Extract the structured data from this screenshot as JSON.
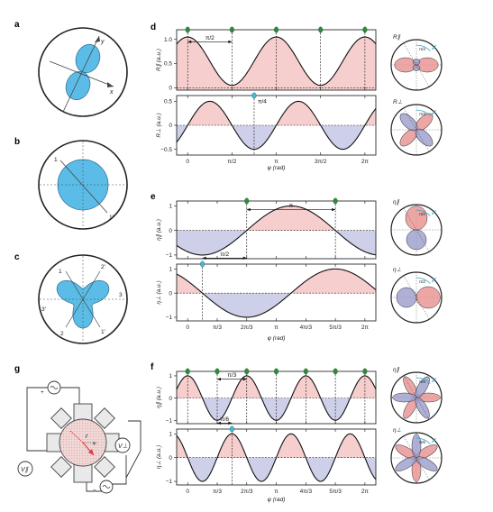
{
  "panels": {
    "a": {
      "label": "a",
      "axes": [
        "y",
        "x"
      ]
    },
    "b": {
      "label": "b",
      "axes": [
        "1",
        "1′"
      ]
    },
    "c": {
      "label": "c",
      "axes": [
        "1",
        "2′",
        "3",
        "3′",
        "2",
        "1′"
      ]
    },
    "g": {
      "label": "g",
      "plus": "+",
      "minus": "−",
      "r": "r",
      "phi": "φ",
      "v_perp": "V⊥",
      "v_par": "V∥"
    }
  },
  "chart_data": [
    {
      "id": "d",
      "label": "d",
      "type": "line",
      "xlabel": "φ (rad)",
      "x_range": [
        -0.39,
        6.67
      ],
      "xticks": [
        {
          "v": 0,
          "t": "0"
        },
        {
          "v": 1.5708,
          "t": "π/2"
        },
        {
          "v": 3.1416,
          "t": "π"
        },
        {
          "v": 4.7124,
          "t": "3π/2"
        },
        {
          "v": 6.2832,
          "t": "2π"
        }
      ],
      "subplots": [
        {
          "ylabel": "R∥ (a.u.)",
          "ylim": [
            -0.05,
            1.2
          ],
          "yticks": [
            0,
            0.5,
            1.0
          ],
          "ytick_labels": [
            "0",
            "0.5",
            "1.0"
          ],
          "curve": "0.55 + 0.5*cos(2x)",
          "fill": "positive",
          "markers": [
            0,
            1.5708,
            3.1416,
            4.7124,
            6.2832
          ],
          "marker_color": "green",
          "annotation": {
            "text": "π/2",
            "x1": 0,
            "x2": 1.5708,
            "y": 0.95
          }
        },
        {
          "ylabel": "R⊥ (a.u.)",
          "ylim": [
            -0.62,
            0.62
          ],
          "yticks": [
            -0.5,
            0,
            0.5
          ],
          "ytick_labels": [
            "−0.5",
            "0",
            "0.5"
          ],
          "curve": "0.5*sin(2x)",
          "fill": "both",
          "markers": [
            2.356
          ],
          "marker_color": "blue",
          "annotation": {
            "text": "π/4",
            "x1": 2.356,
            "x2": 2.356,
            "y": 0.5
          }
        }
      ],
      "polar_titles": [
        "R∥",
        "R⊥"
      ],
      "polar_angle_labels": [
        "π/4",
        "π/4"
      ]
    },
    {
      "id": "e",
      "label": "e",
      "type": "line",
      "xlabel": "φ (rad)",
      "x_range": [
        -0.39,
        6.67
      ],
      "xticks": [
        {
          "v": 0,
          "t": "0"
        },
        {
          "v": 1.0472,
          "t": "π/3"
        },
        {
          "v": 2.0944,
          "t": "2π/3"
        },
        {
          "v": 3.1416,
          "t": "π"
        },
        {
          "v": 4.1888,
          "t": "4π/3"
        },
        {
          "v": 5.236,
          "t": "5π/3"
        },
        {
          "v": 6.2832,
          "t": "2π"
        }
      ],
      "subplots": [
        {
          "ylabel": "η∥ (a.u.)",
          "ylim": [
            -1.15,
            1.2
          ],
          "yticks": [
            -1,
            0,
            1
          ],
          "ytick_labels": [
            "−1",
            "0",
            "1"
          ],
          "curve": "-cos(x - 0.5236)",
          "fill": "both",
          "markers": [
            2.094,
            5.236
          ],
          "marker_color": "green",
          "annotation": {
            "text": "π",
            "x1": 2.094,
            "x2": 5.236,
            "y": 0.85
          }
        },
        {
          "ylabel": "η⊥ (a.u.)",
          "ylim": [
            -1.15,
            1.2
          ],
          "yticks": [
            -1,
            0,
            1
          ],
          "ytick_labels": [
            "−1",
            "0",
            "1"
          ],
          "curve": "-sin(x - 0.5236)",
          "fill": "both",
          "markers": [
            0.5236
          ],
          "marker_color": "blue",
          "annotation": {
            "text": "π/2",
            "x1": 0.5236,
            "x2": 2.094,
            "y": 1.45
          }
        }
      ],
      "polar_titles": [
        "η∥",
        "η⊥"
      ],
      "polar_angle_labels": [
        "π/2",
        "π/2"
      ]
    },
    {
      "id": "f",
      "label": "f",
      "type": "line",
      "xlabel": "φ (rad)",
      "x_range": [
        -0.39,
        6.67
      ],
      "xticks": [
        {
          "v": 0,
          "t": "0"
        },
        {
          "v": 1.0472,
          "t": "π/3"
        },
        {
          "v": 2.0944,
          "t": "2π/3"
        },
        {
          "v": 3.1416,
          "t": "π"
        },
        {
          "v": 4.1888,
          "t": "4π/3"
        },
        {
          "v": 5.236,
          "t": "5π/3"
        },
        {
          "v": 6.2832,
          "t": "2π"
        }
      ],
      "subplots": [
        {
          "ylabel": "η∥ (a.u.)",
          "ylim": [
            -1.15,
            1.2
          ],
          "yticks": [
            -1,
            0,
            1
          ],
          "ytick_labels": [
            "−1",
            "0",
            "1"
          ],
          "curve": "cos(3x)",
          "fill": "both",
          "markers": [
            0,
            2.094,
            4.189,
            6.283,
            1.0472,
            3.1416,
            5.236
          ],
          "marker_color": "green",
          "annotation": {
            "text": "π/3",
            "x1": 1.0472,
            "x2": 2.094,
            "y": 0.85
          }
        },
        {
          "ylabel": "η⊥ (a.u.)",
          "ylim": [
            -1.15,
            1.2
          ],
          "yticks": [
            -1,
            0,
            1
          ],
          "ytick_labels": [
            "−1",
            "0",
            "1"
          ],
          "curve": "-sin(3x)",
          "fill": "both",
          "markers": [
            1.5708
          ],
          "marker_color": "blue",
          "annotation": {
            "text": "π/6",
            "x1": 1.0472,
            "x2": 1.5708,
            "y": 1.45
          }
        }
      ],
      "polar_titles": [
        "η∥",
        "η⊥"
      ],
      "polar_angle_labels": [
        "π/6",
        "π/6"
      ]
    }
  ],
  "colors": {
    "pink": "#f6c6c6",
    "pink_dark": "#e89090",
    "blue": "#c6c8e6",
    "blue_dark": "#9a9ccc",
    "cyan": "#45b6e6",
    "green": "#2e8b3c",
    "teal": "#2aa7c9"
  }
}
